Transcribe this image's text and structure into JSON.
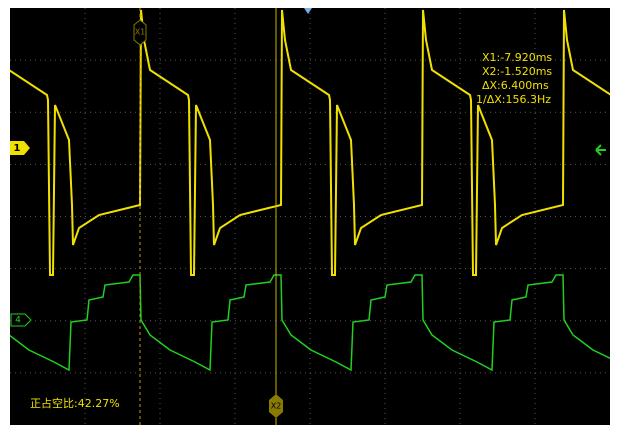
{
  "screen": {
    "cursor_labels": [
      "X1",
      "X2"
    ],
    "channel_labels": [
      "1",
      "4"
    ],
    "readouts": [
      "X1:-7.920ms",
      "X2:-1.520ms",
      "ΔX:6.400ms",
      "1/ΔX:156.3Hz"
    ],
    "measurement": "正占空比:42.27%"
  }
}
